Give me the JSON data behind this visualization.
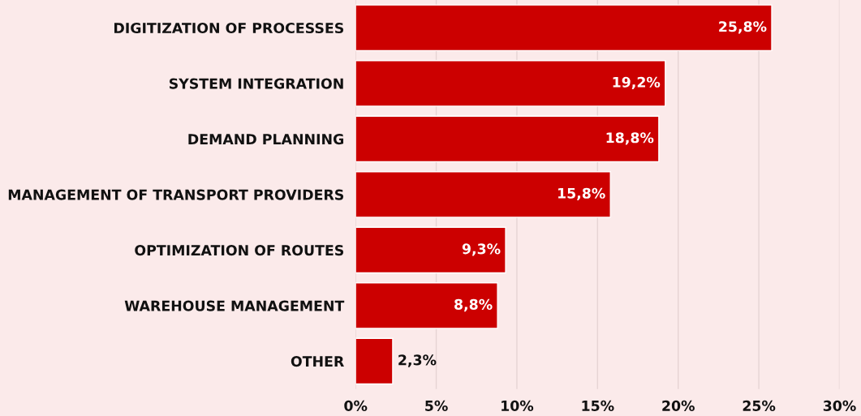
{
  "chart_data": {
    "type": "bar",
    "orientation": "horizontal",
    "categories": [
      "DIGITIZATION OF PROCESSES",
      "SYSTEM INTEGRATION",
      "DEMAND PLANNING",
      "MANAGEMENT OF TRANSPORT PROVIDERS",
      "OPTIMIZATION OF ROUTES",
      "WAREHOUSE MANAGEMENT",
      "OTHER"
    ],
    "values": [
      25.8,
      19.2,
      18.8,
      15.8,
      9.3,
      8.8,
      2.3
    ],
    "value_labels": [
      "25,8%",
      "19,2%",
      "18,8%",
      "15,8%",
      "9,3%",
      "8,8%",
      "2,3%"
    ],
    "color": "#cc0000",
    "xlim": [
      0,
      30
    ],
    "xticks": [
      {
        "value": 0,
        "label": "0%"
      },
      {
        "value": 5,
        "label": "5%"
      },
      {
        "value": 10,
        "label": "10%"
      },
      {
        "value": 15,
        "label": "15%"
      },
      {
        "value": 20,
        "label": "20%"
      },
      {
        "value": 25,
        "label": "25%"
      },
      {
        "value": 30,
        "label": "30%"
      }
    ],
    "grid": "x",
    "legend": false
  }
}
